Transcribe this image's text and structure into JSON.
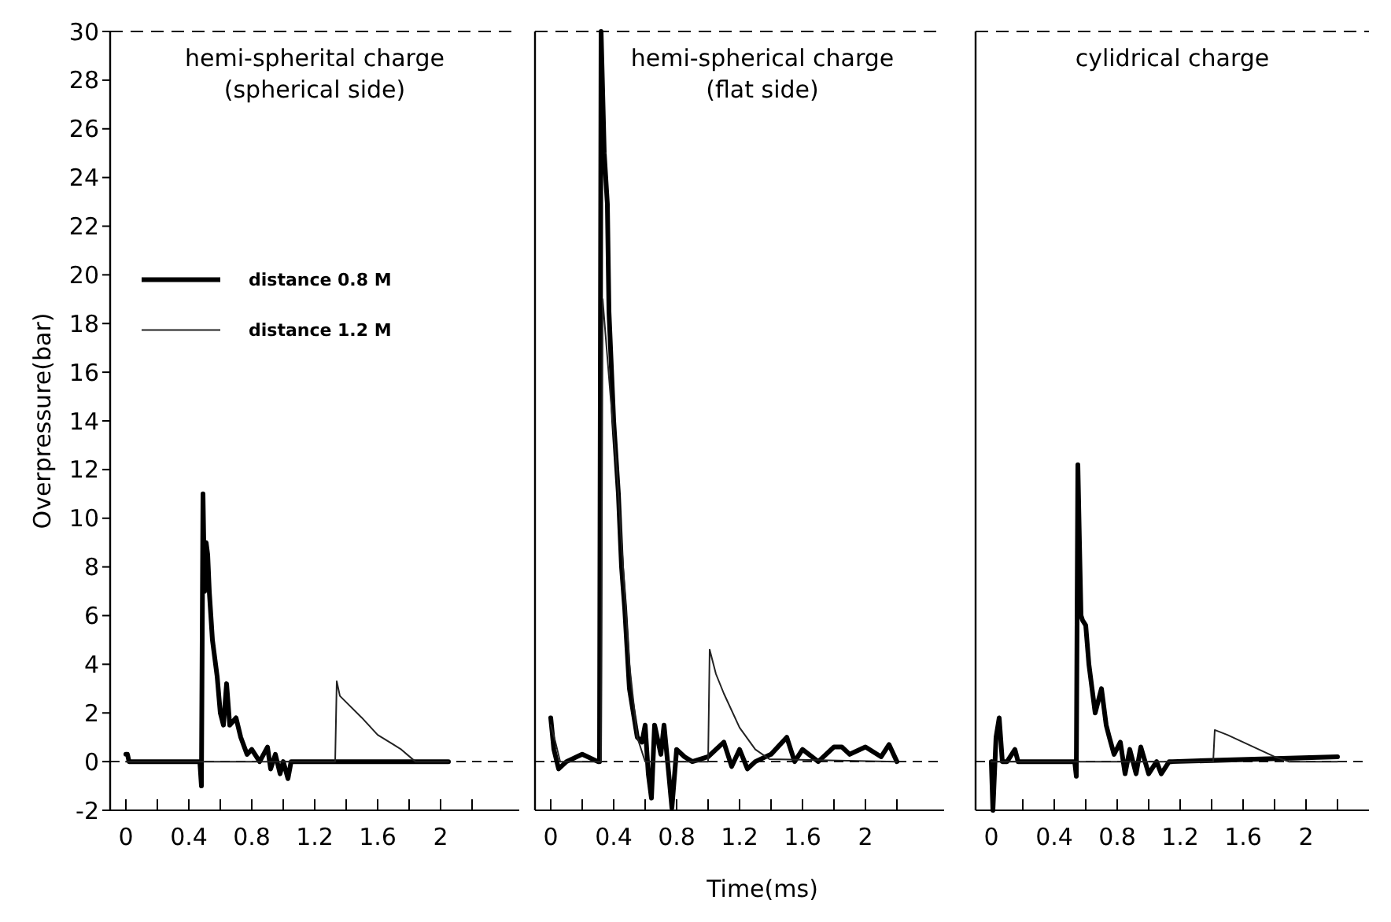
{
  "chart_data": [
    {
      "type": "line",
      "title": "hemi-spherital charge",
      "subtitle": "(spherical side)",
      "ylabel": "Overpressure(bar)",
      "legend": "top left",
      "xlim": [
        -0.1,
        2.5
      ],
      "xticks": [
        0,
        {
          "value": 0.2,
          "label": null
        },
        0.4,
        {
          "value": 0.6,
          "label": null
        },
        0.8,
        {
          "value": 1.0,
          "label": null
        },
        1.2,
        {
          "value": 1.4,
          "label": null
        },
        1.6,
        {
          "value": 1.8,
          "label": null
        },
        2,
        {
          "value": 2.2,
          "label": null
        }
      ],
      "ylim": [
        -2,
        30
      ],
      "yticks": [
        -2,
        0,
        2,
        4,
        6,
        8,
        10,
        12,
        14,
        16,
        18,
        20,
        22,
        24,
        26,
        28,
        30
      ],
      "ref_lines": [
        {
          "axis": "y",
          "value": 0,
          "line_style": "dashed",
          "color": "#000000"
        }
      ],
      "series": [
        {
          "name": "distance 0.8 M",
          "color": "#000000",
          "x": [
            0,
            0.01,
            0.02,
            0.47,
            0.48,
            0.49,
            0.5,
            0.51,
            0.52,
            0.53,
            0.55,
            0.58,
            0.6,
            0.62,
            0.64,
            0.66,
            0.7,
            0.73,
            0.77,
            0.8,
            0.85,
            0.9,
            0.92,
            0.95,
            0.98,
            1.0,
            1.03,
            1.05,
            2.05
          ],
          "values": [
            0.3,
            0.3,
            0,
            0,
            -1,
            11,
            7,
            9,
            8.5,
            7,
            5,
            3.5,
            2,
            1.5,
            3.2,
            1.5,
            1.8,
            1,
            0.3,
            0.5,
            0,
            0.6,
            -0.3,
            0.3,
            -0.5,
            0,
            -0.7,
            0,
            0
          ]
        },
        {
          "name": "distance 1.2 M",
          "color": "#222222",
          "x": [
            0,
            1.33,
            1.34,
            1.36,
            1.5,
            1.6,
            1.7,
            1.75,
            1.84,
            2.05
          ],
          "values": [
            0,
            0,
            3.3,
            2.7,
            1.8,
            1.1,
            0.7,
            0.5,
            0,
            0
          ]
        }
      ]
    },
    {
      "type": "line",
      "title": "hemi-spherical charge",
      "subtitle": "(flat side)",
      "xlabel": "Time(ms)",
      "tick_labels": "x",
      "xlim": [
        -0.1,
        2.5
      ],
      "xticks": [
        0,
        {
          "value": 0.2,
          "label": null
        },
        0.4,
        {
          "value": 0.6,
          "label": null
        },
        0.8,
        {
          "value": 1.0,
          "label": null
        },
        1.2,
        {
          "value": 1.4,
          "label": null
        },
        1.6,
        {
          "value": 1.8,
          "label": null
        },
        2,
        {
          "value": 2.2,
          "label": null
        }
      ],
      "ylim": [
        -2,
        30
      ],
      "yticks": [
        -2,
        0,
        2,
        4,
        6,
        8,
        10,
        12,
        14,
        16,
        18,
        20,
        22,
        24,
        26,
        28,
        30
      ],
      "ref_lines": [
        {
          "axis": "y",
          "value": 0,
          "line_style": "dashed",
          "color": "#000000"
        }
      ],
      "series": [
        {
          "color": "#000000",
          "x": [
            0,
            0.02,
            0.05,
            0.1,
            0.2,
            0.3,
            0.31,
            0.32,
            0.34,
            0.36,
            0.37,
            0.4,
            0.43,
            0.45,
            0.47,
            0.5,
            0.55,
            0.58,
            0.6,
            0.62,
            0.64,
            0.66,
            0.7,
            0.72,
            0.75,
            0.77,
            0.8,
            0.85,
            0.9,
            1.0,
            1.1,
            1.15,
            1.2,
            1.25,
            1.3,
            1.4,
            1.5,
            1.55,
            1.6,
            1.7,
            1.8,
            1.85,
            1.9,
            2.0,
            2.1,
            2.15,
            2.2
          ],
          "values": [
            1.8,
            0.5,
            -0.3,
            0,
            0.3,
            0,
            0,
            30,
            25,
            22.9,
            18.5,
            14,
            11,
            8,
            6.3,
            3,
            1,
            0.8,
            1.5,
            -0.5,
            -1.5,
            1.5,
            0.3,
            1.5,
            -0.5,
            -1.9,
            0.5,
            0.2,
            0,
            0.2,
            0.8,
            -0.2,
            0.5,
            -0.3,
            0,
            0.3,
            1,
            0,
            0.5,
            0,
            0.6,
            0.6,
            0.3,
            0.6,
            0.2,
            0.7,
            0
          ]
        },
        {
          "color": "#222222",
          "x": [
            0,
            0.03,
            0.06,
            0.3,
            0.32,
            0.33,
            0.38,
            0.42,
            0.46,
            0.5,
            0.55,
            0.6,
            0.99,
            1.0,
            1.01,
            1.05,
            1.1,
            1.2,
            1.3,
            1.39,
            2.2
          ],
          "values": [
            1.5,
            0.8,
            0,
            0,
            0,
            19,
            15,
            12,
            8,
            4,
            1,
            0,
            0,
            0,
            4.6,
            3.6,
            2.8,
            1.4,
            0.5,
            0.1,
            0
          ]
        }
      ]
    },
    {
      "type": "line",
      "title": "cylidrical charge",
      "tick_labels": "x",
      "xlim": [
        -0.1,
        2.4
      ],
      "xticks": [
        0,
        {
          "value": 0.2,
          "label": null
        },
        0.4,
        {
          "value": 0.6,
          "label": null
        },
        0.8,
        {
          "value": 1.0,
          "label": null
        },
        1.2,
        {
          "value": 1.4,
          "label": null
        },
        1.6,
        {
          "value": 1.8,
          "label": null
        },
        2,
        {
          "value": 2.2,
          "label": null
        }
      ],
      "ylim": [
        -2,
        30
      ],
      "yticks": [
        -2,
        0,
        2,
        4,
        6,
        8,
        10,
        12,
        14,
        16,
        18,
        20,
        22,
        24,
        26,
        28,
        30
      ],
      "ref_lines": [
        {
          "axis": "y",
          "value": 0,
          "line_style": "dashed",
          "color": "#000000"
        }
      ],
      "series": [
        {
          "color": "#000000",
          "x": [
            0,
            0.01,
            0.03,
            0.05,
            0.07,
            0.1,
            0.15,
            0.17,
            0.2,
            0.53,
            0.54,
            0.55,
            0.56,
            0.57,
            0.58,
            0.6,
            0.62,
            0.64,
            0.66,
            0.7,
            0.73,
            0.75,
            0.78,
            0.82,
            0.85,
            0.88,
            0.92,
            0.95,
            1.0,
            1.05,
            1.08,
            1.13,
            1.15,
            2.2
          ],
          "values": [
            0,
            -2,
            1,
            1.8,
            0,
            0,
            0.5,
            0,
            0,
            0,
            -0.6,
            12.2,
            9,
            6,
            5.8,
            5.6,
            4,
            3,
            2,
            3,
            1.5,
            1,
            0.3,
            0.8,
            -0.5,
            0.5,
            -0.5,
            0.6,
            -0.5,
            0,
            -0.5,
            0,
            0,
            0.2
          ]
        },
        {
          "color": "#222222",
          "x": [
            0,
            1.41,
            1.42,
            1.5,
            1.6,
            1.7,
            1.8,
            1.89,
            2.2
          ],
          "values": [
            0,
            0,
            1.3,
            1.1,
            0.8,
            0.5,
            0.2,
            0,
            0
          ]
        }
      ]
    }
  ]
}
